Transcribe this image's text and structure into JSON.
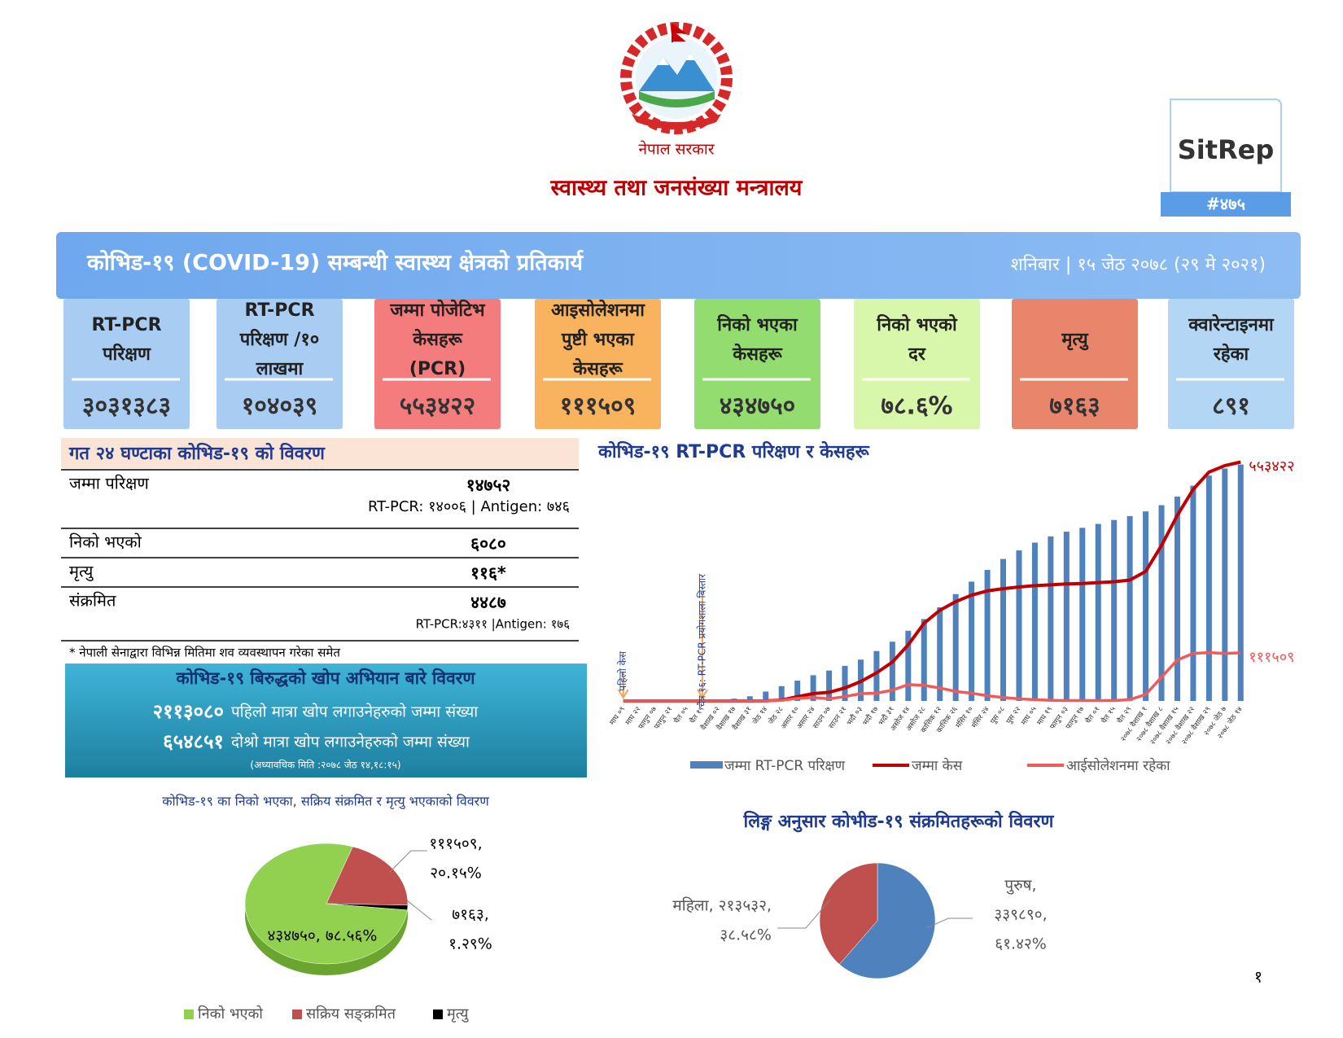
{
  "header": {
    "caption": "नेपाल सरकार",
    "ministry": "स्वास्थ्य तथा जनसंख्या मन्त्रालय",
    "badge": "SitRep",
    "number": "#४७५"
  },
  "banner": {
    "title": "कोभिड-१९ (COVID-19) सम्बन्धी स्वास्थ्य क्षेत्रको प्रतिकार्य",
    "date": "शनिबार | १५ जेठ २०७८ (२९ मे २०२१)"
  },
  "cards": [
    {
      "label_lines": [
        "RT-PCR",
        "परिक्षण"
      ],
      "value": "३०३१३८३",
      "color": "#a9cdf2"
    },
    {
      "label_lines": [
        "RT-PCR",
        "परिक्षण /१०",
        "लाखमा"
      ],
      "value": "१०४०३९",
      "color": "#a9cdf2"
    },
    {
      "label_lines": [
        "जम्मा पोजेटिभ",
        "केसहरू",
        "(PCR)"
      ],
      "value": "५५३४२२",
      "color": "#f47c7c"
    },
    {
      "label_lines": [
        "आइसोलेशनमा",
        "पुष्टी भएका",
        "केसहरू"
      ],
      "value": "१११५०९",
      "color": "#f9b35e"
    },
    {
      "label_lines": [
        "निको भएका",
        "केसहरू"
      ],
      "value": "४३४७५०",
      "color": "#93dc70"
    },
    {
      "label_lines": [
        "निको भएको",
        "दर"
      ],
      "value": "७८.६%",
      "color": "#d9f7ab"
    },
    {
      "label_lines": [
        "मृत्यु"
      ],
      "value": "७१६३",
      "color": "#e8856b"
    },
    {
      "label_lines": [
        "क्वारेन्टाइनमा",
        "रहेका"
      ],
      "value": "८९१",
      "color": "#b3d6f5"
    }
  ],
  "summary": {
    "title": "गत २४ घण्टाका कोभिड-१९ को विवरण",
    "rows": [
      {
        "label": "जम्मा परिक्षण",
        "value": "१४७५२",
        "note": "RT-PCR: १४००६ | Antigen: ७४६"
      },
      {
        "label": "निको भएको",
        "value": "६०८०"
      },
      {
        "label": "मृत्यु",
        "value": "११६*"
      },
      {
        "label": "संक्रमित",
        "value": "४४८७",
        "note": "RT-PCR:४३११ |Antigen: १७६"
      }
    ],
    "footnote": "* नेपाली सेनाद्वारा विभिन्न मितिमा शव व्यवस्थापन गरेका समेत"
  },
  "vaccine": {
    "title": "कोभिड-१९ बिरुद्धको खोप अभियान बारे विवरण",
    "lines": [
      {
        "number": "२११३०८०",
        "text": "पहिलो मात्रा खोप लगाउनेहरुको जम्मा संख्या"
      },
      {
        "number": "६५४८५१",
        "text": "दोश्रो मात्रा खोप लगाउनेहरुको जम्मा संख्या"
      }
    ],
    "note": "(अध्यावधिक मिति :२०७८ जेठ १४,१८:१५)"
  },
  "chart_data": [
    {
      "type": "bar-line",
      "title": "कोभिड-१९ RT-PCR परिक्षण र केसहरू",
      "annotations": [
        "पहिलो केस",
        "चैत्र १६: RT-PCR प्रयोगशाला बिस्तार"
      ],
      "categories": [
        "माघ ०९",
        "माघ २२",
        "फागुन ०७",
        "फागुन २१",
        "चैत ०५",
        "चैत १९",
        "वैशाख ०२",
        "वैशाख १७",
        "वैशाख ३१",
        "जेठ १४",
        "जेठ २८",
        "असार १०",
        "असार २४",
        "साउन ०७",
        "साउन २१",
        "भदौ ०३",
        "भदौ १७",
        "भदौ ३१",
        "असोज १४",
        "असोज २८",
        "कात्तिक १२",
        "कात्तिक २६",
        "मंसिर १०",
        "मंसिर २४",
        "पुस ०८",
        "पुस २२",
        "माघ ०५",
        "माघ १९",
        "फागुन ०३",
        "फागुन १७",
        "चैत ०१",
        "चैत १५",
        "चैत २९",
        "२०७८ वैशाख १",
        "२०७८ वैशाख ८",
        "२०७८ वैशाख १५",
        "२०७८ वैशाख २२",
        "२०७८ वैशाख २९",
        "२०७८ जेठ ७",
        "२०७८ जेठ १४"
      ],
      "series": [
        {
          "name": "जम्मा RT-PCR परिक्षण",
          "color": "#4f81bd",
          "kind": "bar",
          "values": [
            0,
            0,
            0,
            0,
            0,
            1000,
            10000,
            30000,
            60000,
            120000,
            190000,
            260000,
            330000,
            390000,
            450000,
            530000,
            640000,
            760000,
            900000,
            1050000,
            1200000,
            1370000,
            1530000,
            1680000,
            1820000,
            1930000,
            2030000,
            2110000,
            2170000,
            2220000,
            2270000,
            2320000,
            2370000,
            2430000,
            2510000,
            2620000,
            2760000,
            2890000,
            2980000,
            3031383
          ]
        },
        {
          "name": "जम्मा केस",
          "color": "#c00000",
          "kind": "line",
          "axis": "y2",
          "end_label": "५५३४२२",
          "values": [
            0,
            0,
            0,
            0,
            0,
            0,
            0,
            0,
            0,
            300,
            2000,
            10000,
            17000,
            20000,
            30000,
            45000,
            65000,
            90000,
            130000,
            180000,
            210000,
            230000,
            245000,
            255000,
            260000,
            264000,
            267000,
            269000,
            271000,
            272000,
            274000,
            276000,
            280000,
            300000,
            360000,
            430000,
            490000,
            530000,
            545000,
            553422
          ]
        },
        {
          "name": "आईसोलेशनमा रहेका",
          "color": "#f05a5a",
          "kind": "line",
          "axis": "y2",
          "end_label": "१११५०९",
          "values": [
            0,
            0,
            0,
            0,
            0,
            0,
            0,
            0,
            0,
            0,
            1500,
            6000,
            8000,
            5000,
            10000,
            17000,
            18000,
            25000,
            38000,
            36000,
            30000,
            22000,
            18000,
            12000,
            8000,
            5000,
            3000,
            1500,
            1000,
            1000,
            1000,
            1000,
            3000,
            15000,
            55000,
            95000,
            110000,
            112000,
            110000,
            111509
          ]
        }
      ],
      "ylim": [
        0,
        3100000
      ],
      "y2lim": [
        0,
        560000
      ]
    },
    {
      "type": "pie",
      "title": "कोभिड-१९ का निको भएका, सक्रिय संक्रमित र मृत्यु भएकाको विवरण",
      "categories": [
        "सक्रिय सङ्क्रमित",
        "मृत्यु",
        "निको भएको"
      ],
      "values": [
        111509,
        7163,
        434750
      ],
      "value_labels": [
        [
          "१११५०९,",
          "२०.१५%"
        ],
        [
          "७१६३,",
          "१.२९%"
        ],
        [
          "४३४७५०, ७८.५६%"
        ]
      ],
      "colors": [
        "#c0504d",
        "#000000",
        "#92d050"
      ],
      "legend": "bottom"
    },
    {
      "type": "pie",
      "title": "लिङ्ग अनुसार कोभीड-१९ संक्रमितहरूको विवरण",
      "categories": [
        "पुरुष",
        "महिला"
      ],
      "values": [
        339890,
        213532
      ],
      "value_labels": [
        [
          "पुरुष,",
          "३३९८९०,",
          "६१.४२%"
        ],
        [
          "महिला, २१३५३२,",
          "३८.५८%"
        ]
      ],
      "colors": [
        "#4f81bd",
        "#c0504d"
      ]
    }
  ],
  "page_number": "१"
}
